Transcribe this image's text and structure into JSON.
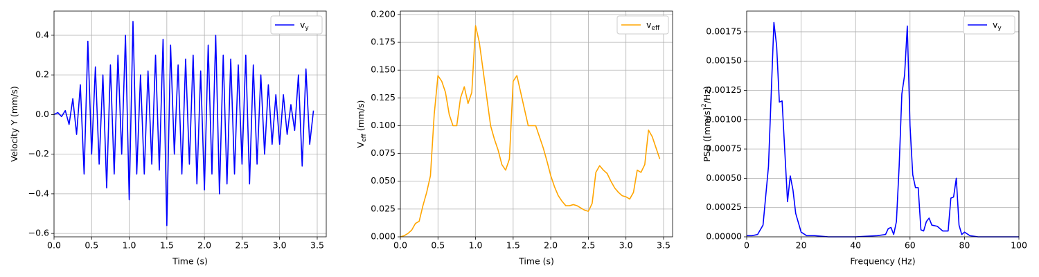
{
  "chart_data": [
    {
      "type": "line",
      "xlabel": "Time (s)",
      "ylabel": "Velocity Y (mm/s)",
      "xlim": [
        0,
        3.62
      ],
      "ylim": [
        -0.617,
        0.522
      ],
      "grid": true,
      "legend": "upper right",
      "xticks": [
        {
          "value": 0,
          "label": "0.0"
        },
        0.5,
        {
          "value": 1,
          "label": "1.0"
        },
        1.5,
        {
          "value": 2,
          "label": "2.0"
        },
        2.5,
        {
          "value": 3,
          "label": "3.0"
        },
        3.5
      ],
      "yticks": [
        {
          "value": -0.6,
          "label": "−0.6"
        },
        {
          "value": -0.4,
          "label": "−0.4"
        },
        {
          "value": -0.2,
          "label": "−0.2"
        },
        {
          "value": 0,
          "label": "0.0"
        },
        0.2,
        0.4
      ],
      "x": [
        0,
        0.05,
        0.1,
        0.15,
        0.2,
        0.25,
        0.3,
        0.35,
        0.4,
        0.45,
        0.5,
        0.55,
        0.6,
        0.65,
        0.7,
        0.75,
        0.8,
        0.85,
        0.9,
        0.95,
        1.0,
        1.05,
        1.1,
        1.15,
        1.2,
        1.25,
        1.3,
        1.35,
        1.4,
        1.45,
        1.5,
        1.55,
        1.6,
        1.65,
        1.7,
        1.75,
        1.8,
        1.85,
        1.9,
        1.95,
        2.0,
        2.05,
        2.1,
        2.15,
        2.2,
        2.25,
        2.3,
        2.35,
        2.4,
        2.45,
        2.5,
        2.55,
        2.6,
        2.65,
        2.7,
        2.75,
        2.8,
        2.85,
        2.9,
        2.95,
        3.0,
        3.05,
        3.1,
        3.15,
        3.2,
        3.25,
        3.3,
        3.35,
        3.4,
        3.45
      ],
      "series": [
        {
          "name": "v",
          "name_sub": "y",
          "color": "#0000ff",
          "values": [
            0,
            0.01,
            -0.01,
            0.02,
            -0.05,
            0.08,
            -0.1,
            0.15,
            -0.3,
            0.37,
            -0.2,
            0.24,
            -0.25,
            0.2,
            -0.37,
            0.25,
            -0.3,
            0.3,
            -0.2,
            0.4,
            -0.43,
            0.47,
            -0.3,
            0.2,
            -0.3,
            0.22,
            -0.25,
            0.3,
            -0.28,
            0.38,
            -0.56,
            0.35,
            -0.2,
            0.25,
            -0.3,
            0.28,
            -0.25,
            0.3,
            -0.35,
            0.22,
            -0.38,
            0.35,
            -0.3,
            0.4,
            -0.4,
            0.3,
            -0.35,
            0.28,
            -0.3,
            0.25,
            -0.25,
            0.3,
            -0.35,
            0.25,
            -0.25,
            0.2,
            -0.2,
            0.15,
            -0.15,
            0.1,
            -0.15,
            0.1,
            -0.1,
            0.05,
            -0.08,
            0.2,
            -0.26,
            0.23,
            -0.15,
            0.02
          ]
        }
      ]
    },
    {
      "type": "line",
      "xlabel": "Time (s)",
      "ylabel": "V",
      "ylabel_sub": "eff",
      "ylabel_end": " (mm/s)",
      "xlim": [
        0,
        3.62
      ],
      "ylim": [
        0,
        0.2031
      ],
      "grid": true,
      "legend": "upper right",
      "xticks": [
        {
          "value": 0,
          "label": "0.0"
        },
        0.5,
        {
          "value": 1,
          "label": "1.0"
        },
        1.5,
        {
          "value": 2,
          "label": "2.0"
        },
        2.5,
        {
          "value": 3,
          "label": "3.0"
        },
        3.5
      ],
      "yticks": [
        {
          "value": 0,
          "label": "0.000"
        },
        0.025,
        {
          "value": 0.05,
          "label": "0.050"
        },
        0.075,
        {
          "value": 0.1,
          "label": "0.100"
        },
        0.125,
        {
          "value": 0.15,
          "label": "0.150"
        },
        0.175,
        {
          "value": 0.2,
          "label": "0.200"
        }
      ],
      "x": [
        0,
        0.05,
        0.1,
        0.15,
        0.2,
        0.25,
        0.3,
        0.35,
        0.4,
        0.45,
        0.5,
        0.55,
        0.6,
        0.65,
        0.7,
        0.75,
        0.8,
        0.85,
        0.9,
        0.95,
        1.0,
        1.05,
        1.1,
        1.15,
        1.2,
        1.25,
        1.3,
        1.35,
        1.4,
        1.45,
        1.5,
        1.55,
        1.6,
        1.65,
        1.7,
        1.75,
        1.8,
        1.85,
        1.9,
        1.95,
        2.0,
        2.05,
        2.1,
        2.15,
        2.2,
        2.25,
        2.3,
        2.35,
        2.4,
        2.45,
        2.5,
        2.55,
        2.6,
        2.65,
        2.7,
        2.75,
        2.8,
        2.85,
        2.9,
        2.95,
        3.0,
        3.05,
        3.1,
        3.15,
        3.2,
        3.25,
        3.3,
        3.35,
        3.4,
        3.45
      ],
      "series": [
        {
          "name": "v",
          "name_sub": "eff",
          "color": "#ffa500",
          "values": [
            0,
            0.001,
            0.003,
            0.006,
            0.012,
            0.014,
            0.028,
            0.04,
            0.055,
            0.11,
            0.145,
            0.14,
            0.13,
            0.11,
            0.1,
            0.1,
            0.125,
            0.135,
            0.12,
            0.13,
            0.19,
            0.175,
            0.15,
            0.125,
            0.1,
            0.088,
            0.078,
            0.065,
            0.06,
            0.07,
            0.14,
            0.145,
            0.13,
            0.115,
            0.1,
            0.1,
            0.1,
            0.09,
            0.08,
            0.068,
            0.055,
            0.045,
            0.037,
            0.032,
            0.028,
            0.028,
            0.029,
            0.028,
            0.026,
            0.024,
            0.023,
            0.03,
            0.058,
            0.064,
            0.06,
            0.057,
            0.05,
            0.044,
            0.04,
            0.037,
            0.036,
            0.034,
            0.04,
            0.06,
            0.058,
            0.065,
            0.096,
            0.09,
            0.08,
            0.07
          ]
        }
      ]
    },
    {
      "type": "line",
      "xlabel": "Frequency (Hz)",
      "ylabel": "PSD ([mm/s]",
      "ylabel_sup": "2",
      "ylabel_end": "/Hz)",
      "xlim": [
        0,
        100
      ],
      "ylim": [
        0,
        0.001927
      ],
      "grid": true,
      "legend": "upper right",
      "xticks": [
        0,
        20,
        40,
        60,
        80,
        100
      ],
      "yticks": [
        {
          "value": 0,
          "label": "0.00000"
        },
        0.00025,
        {
          "value": 0.0005,
          "label": "0.00050"
        },
        0.00075,
        {
          "value": 0.001,
          "label": "0.00100"
        },
        0.00125,
        {
          "value": 0.0015,
          "label": "0.00150"
        },
        0.00175
      ],
      "x": [
        0,
        2,
        4,
        6,
        8,
        10,
        11,
        12,
        13,
        15,
        16,
        17,
        18,
        20,
        22,
        25,
        30,
        40,
        48,
        51,
        52,
        53,
        54,
        55,
        56,
        57,
        58,
        59,
        60,
        61,
        62,
        63,
        64,
        65,
        66,
        67,
        68,
        70,
        72,
        74,
        75,
        76,
        77,
        78,
        79,
        80,
        82,
        85,
        90,
        100
      ],
      "series": [
        {
          "name": "v",
          "name_sub": "y",
          "color": "#0000ff",
          "values": [
            1e-05,
            1e-05,
            2e-05,
            0.0001,
            0.0006,
            0.00183,
            0.00163,
            0.00115,
            0.00116,
            0.0003,
            0.00052,
            0.0004,
            0.0002,
            4e-05,
            1e-05,
            1e-05,
            0,
            0,
            1e-05,
            2e-05,
            7e-05,
            8e-05,
            2e-05,
            0.00013,
            0.0006,
            0.00122,
            0.00138,
            0.0018,
            0.00095,
            0.00053,
            0.00042,
            0.00042,
            6e-05,
            5e-05,
            0.00013,
            0.00016,
            0.0001,
            9e-05,
            5e-05,
            5e-05,
            0.00033,
            0.00034,
            0.0005,
            0.0001,
            2e-05,
            4e-05,
            1e-05,
            0,
            0,
            0
          ]
        }
      ]
    }
  ]
}
